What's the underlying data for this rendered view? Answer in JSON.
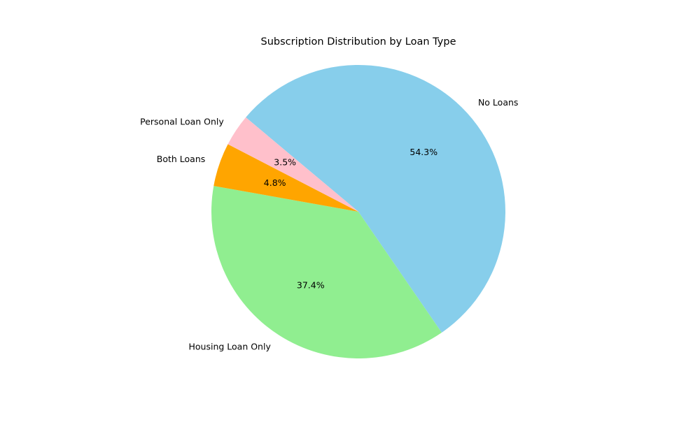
{
  "chart_data": {
    "type": "pie",
    "title": "Subscription Distribution by Loan Type",
    "slices": [
      {
        "label": "No Loans",
        "value": 54.3,
        "pct_label": "54.3%",
        "color": "#87ceeb"
      },
      {
        "label": "Housing Loan Only",
        "value": 37.4,
        "pct_label": "37.4%",
        "color": "#90ee90"
      },
      {
        "label": "Both Loans",
        "value": 4.8,
        "pct_label": "4.8%",
        "color": "#ffa500"
      },
      {
        "label": "Personal Loan Only",
        "value": 3.5,
        "pct_label": "3.5%",
        "color": "#ffc0cb"
      }
    ]
  }
}
